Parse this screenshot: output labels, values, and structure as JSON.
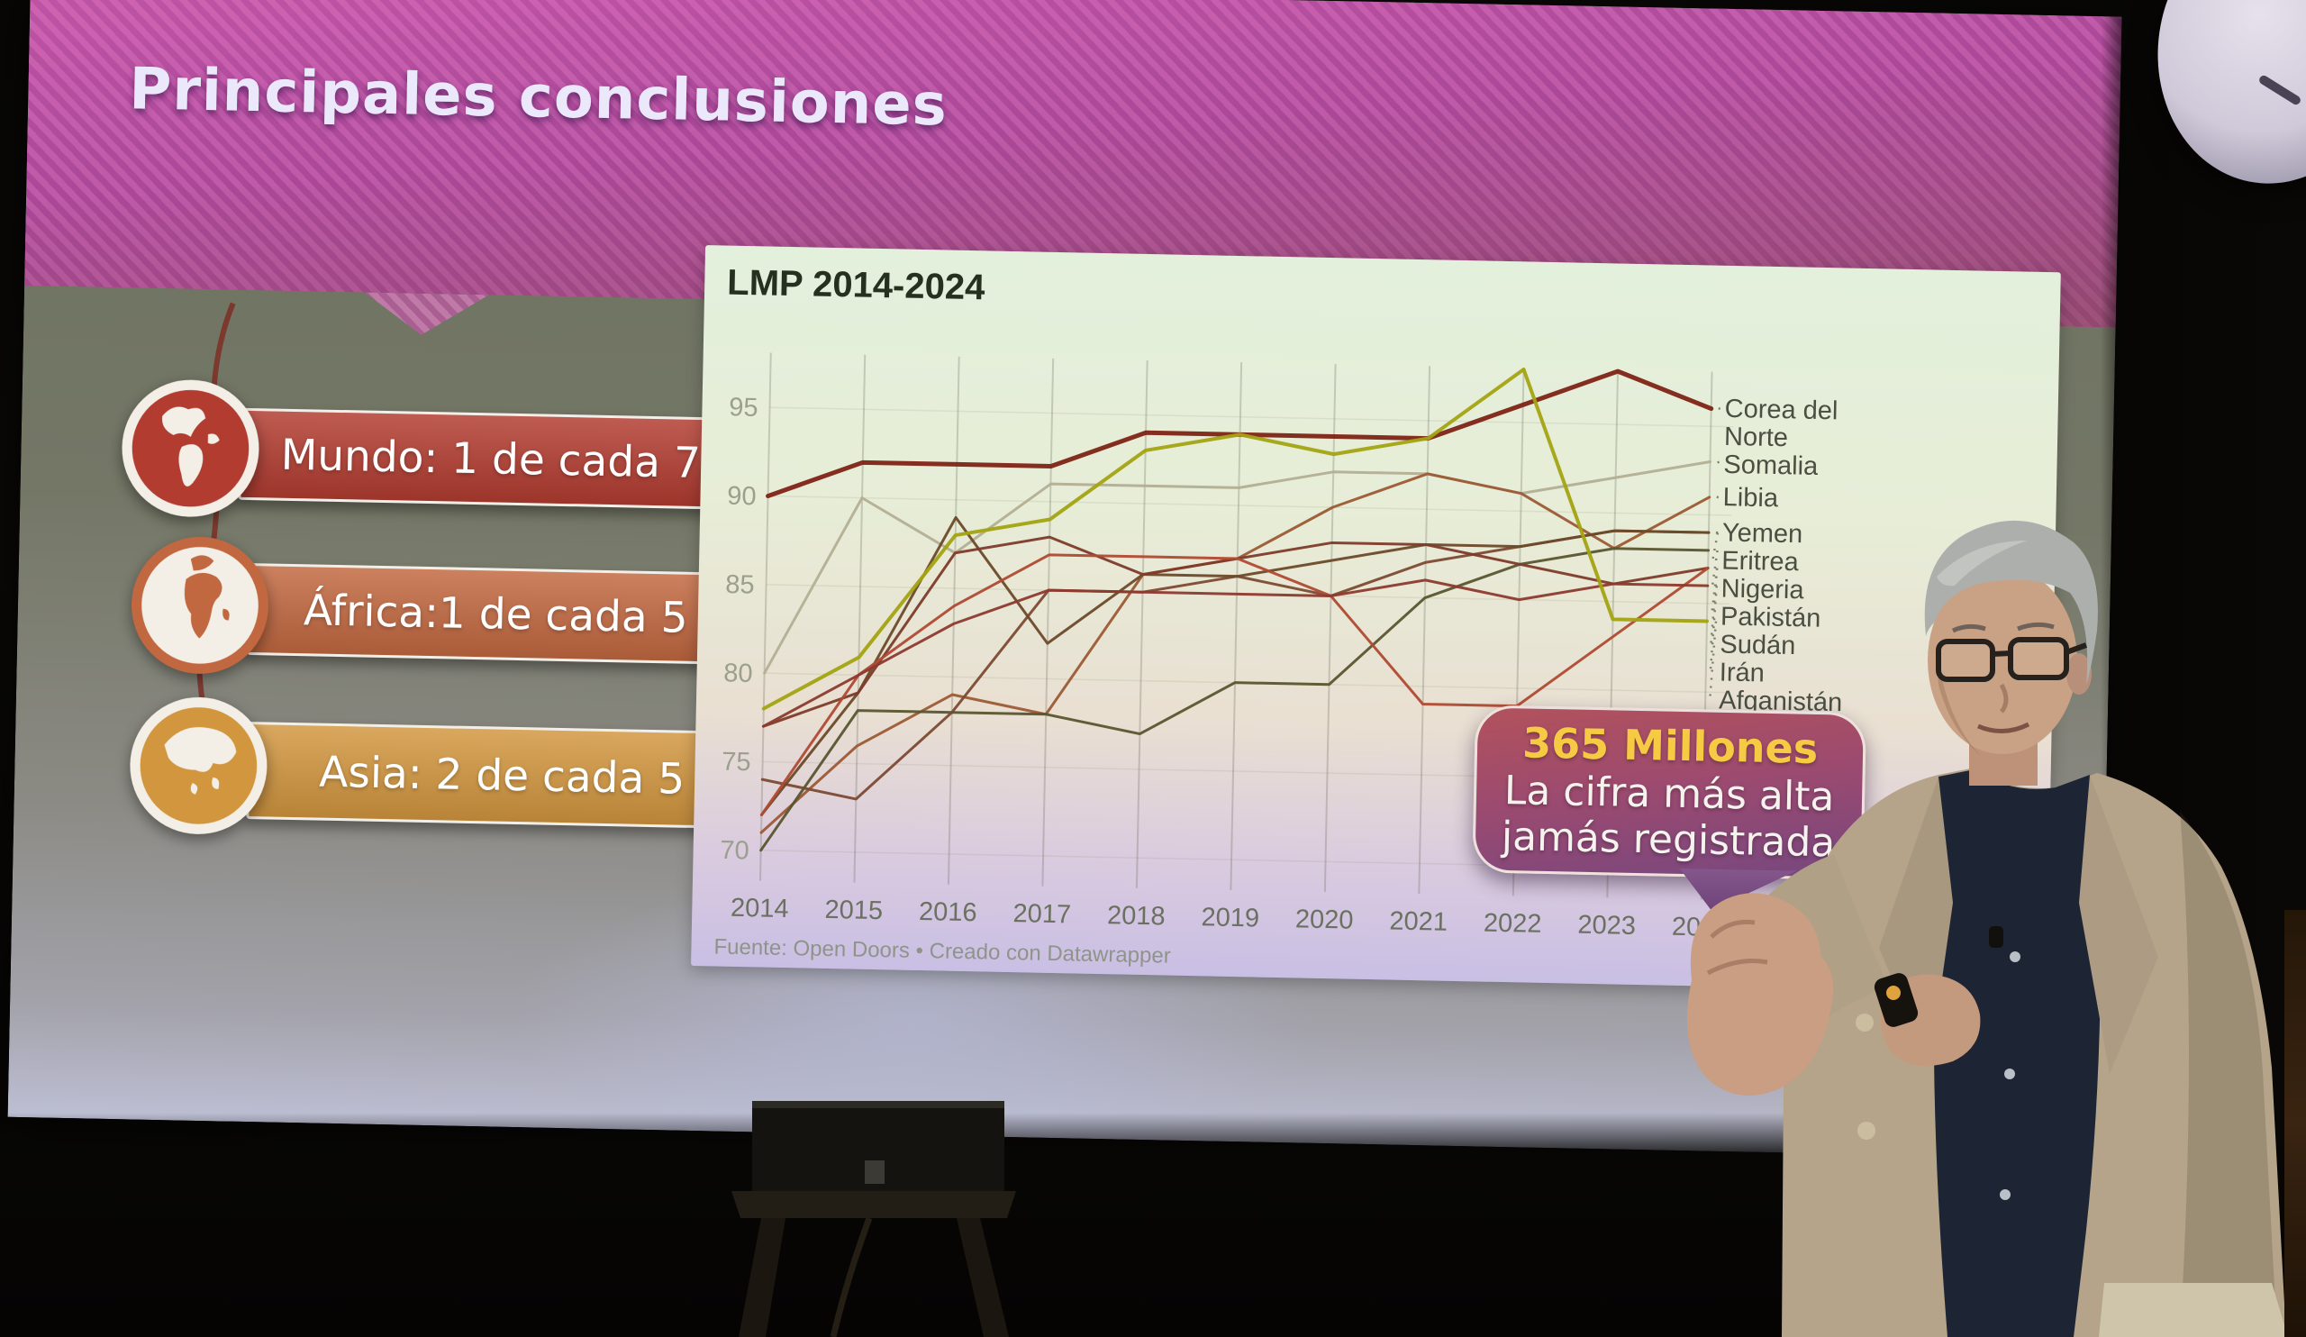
{
  "slide": {
    "title": "Principales conclusiones",
    "badges": [
      {
        "icon": "globe-americas-icon",
        "label": "Mundo: 1 de cada 7",
        "color": "#b23c30"
      },
      {
        "icon": "globe-africa-icon",
        "label": "África:1 de cada 5",
        "color": "#c26840"
      },
      {
        "icon": "globe-asia-icon",
        "label": "Asia: 2 de cada 5",
        "color": "#d2963f"
      }
    ],
    "callout": {
      "headline": "365 Millones",
      "headline_color": "#f6cb43",
      "lines": [
        "La cifra más alta",
        "jamás registrada"
      ]
    }
  },
  "chart_data": {
    "type": "line",
    "title": "LMP 2014-2024",
    "source": "Fuente: Open Doors • Creado con Datawrapper",
    "x": [
      2014,
      2015,
      2016,
      2017,
      2018,
      2019,
      2020,
      2021,
      2022,
      2023,
      2024
    ],
    "ylim": [
      69,
      99
    ],
    "y_ticks": [
      70,
      75,
      80,
      85,
      90,
      95
    ],
    "grid": "vertical-year-lines",
    "legend_position": "right-of-line-endpoints",
    "series": [
      {
        "name": "Corea del Norte",
        "color": "#7e2316",
        "width": 5,
        "values": [
          90,
          92,
          92,
          92,
          94,
          94,
          94,
          94,
          96,
          98,
          96
        ]
      },
      {
        "name": "Somalia",
        "color": "#b3af94",
        "width": 3,
        "values": [
          80,
          90,
          87,
          91,
          91,
          91,
          92,
          92,
          91,
          92,
          93
        ]
      },
      {
        "name": "Libia",
        "color": "#9c5a35",
        "width": 3,
        "values": [
          71,
          76,
          79,
          78,
          86,
          87,
          90,
          92,
          91,
          88,
          91
        ]
      },
      {
        "name": "Yemen",
        "color": "#7c4a33",
        "width": 3,
        "values": [
          74,
          73,
          78,
          85,
          85,
          86,
          85,
          87,
          88,
          89,
          89
        ]
      },
      {
        "name": "Eritrea",
        "color": "#6b4a2a",
        "width": 3,
        "values": [
          72,
          79,
          89,
          82,
          86,
          86,
          87,
          88,
          88,
          89,
          89
        ]
      },
      {
        "name": "Nigeria",
        "color": "#58552f",
        "width": 3,
        "values": [
          70,
          78,
          78,
          78,
          77,
          80,
          80,
          85,
          87,
          88,
          88
        ]
      },
      {
        "name": "Pakistán",
        "color": "#7e3b2a",
        "width": 3,
        "values": [
          77,
          79,
          87,
          88,
          86,
          87,
          88,
          88,
          87,
          86,
          87
        ]
      },
      {
        "name": "Sudán",
        "color": "#b04a33",
        "width": 3,
        "values": [
          72,
          80,
          84,
          87,
          87,
          87,
          85,
          79,
          79,
          83,
          87
        ]
      },
      {
        "name": "Irán",
        "color": "#8d3a2e",
        "width": 3,
        "values": [
          77,
          80,
          83,
          85,
          85,
          85,
          85,
          86,
          85,
          86,
          86
        ]
      },
      {
        "name": "Afganistán",
        "color": "#a3a312",
        "width": 4,
        "values": [
          78,
          81,
          88,
          89,
          93,
          94,
          93,
          94,
          98,
          84,
          84
        ]
      }
    ]
  }
}
